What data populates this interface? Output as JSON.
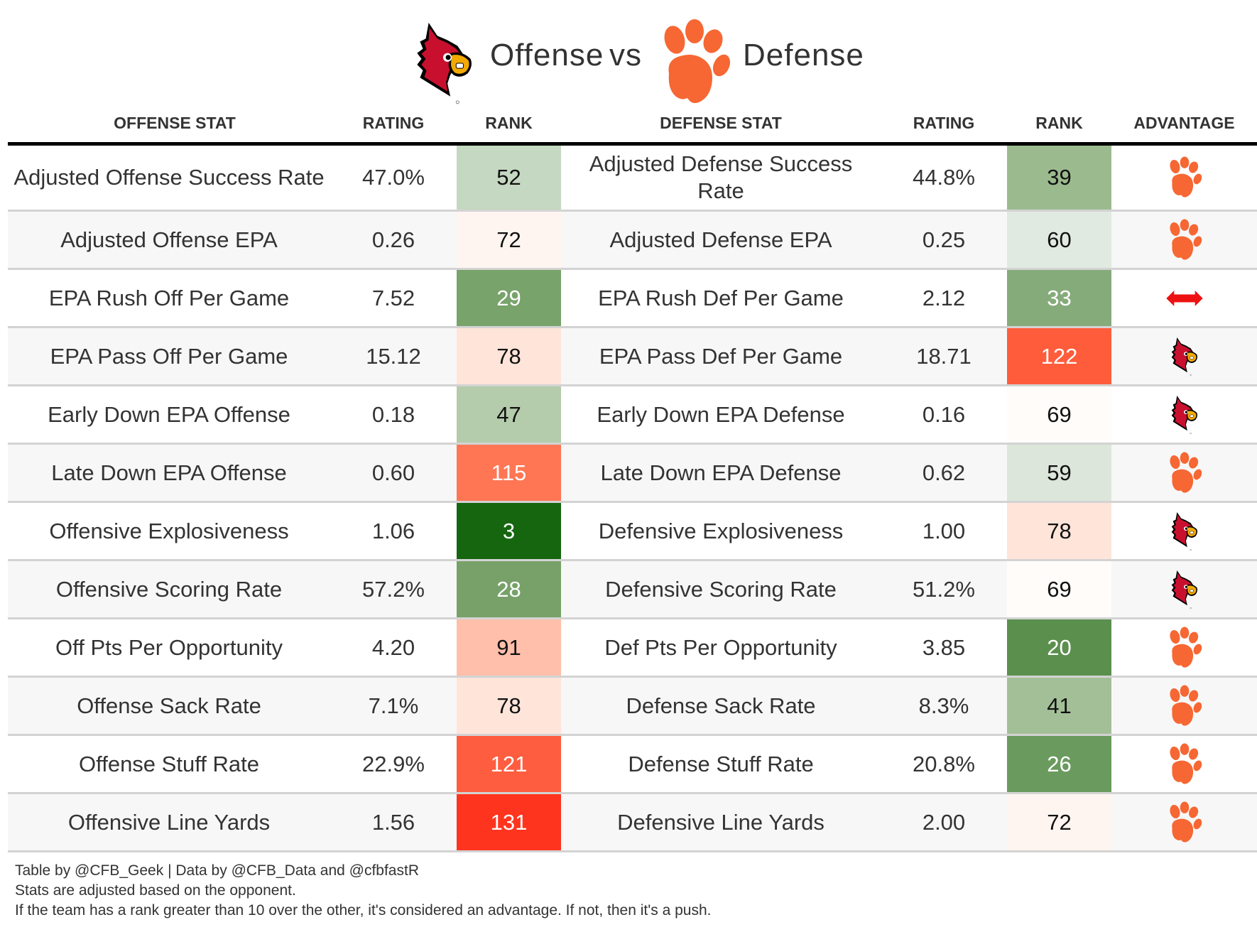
{
  "title": {
    "offense_team_icon": "louisville-cardinal-logo",
    "offense_label": "Offense",
    "vs_label": "vs",
    "defense_team_icon": "clemson-paw-logo",
    "defense_label": "Defense"
  },
  "columns": {
    "offense_stat": "OFFENSE STAT",
    "offense_rating": "RATING",
    "offense_rank": "RANK",
    "defense_stat": "DEFENSE STAT",
    "defense_rating": "RATING",
    "defense_rank": "RANK",
    "advantage": "ADVANTAGE"
  },
  "colors": {
    "cardinal_red": "#c8102e",
    "clemson_orange": "#f66733",
    "push_arrow": "#ee1111",
    "rule": "#000000",
    "row_alt": "#f7f7f7",
    "row_border": "#d3d3d3"
  },
  "rows": [
    {
      "offense_stat": "Adjusted Offense Success Rate",
      "offense_rating": "47.0%",
      "offense_rank": "52",
      "offense_rank_color": "#c5d8c1",
      "offense_rank_text": "#111111",
      "defense_stat": "Adjusted Defense Success Rate",
      "defense_rating": "44.8%",
      "defense_rank": "39",
      "defense_rank_color": "#9bbb8f",
      "defense_rank_text": "#111111",
      "advantage": "defense"
    },
    {
      "offense_stat": "Adjusted Offense EPA",
      "offense_rating": "0.26",
      "offense_rank": "72",
      "offense_rank_color": "#fff5f0",
      "offense_rank_text": "#111111",
      "defense_stat": "Adjusted Defense EPA",
      "defense_rating": "0.25",
      "defense_rank": "60",
      "defense_rank_color": "#e1eae0",
      "defense_rank_text": "#111111",
      "advantage": "defense"
    },
    {
      "offense_stat": "EPA Rush Off Per Game",
      "offense_rating": "7.52",
      "offense_rank": "29",
      "offense_rank_color": "#78a36b",
      "offense_rank_text": "#ffffff",
      "defense_stat": "EPA Rush Def Per Game",
      "defense_rating": "2.12",
      "defense_rank": "33",
      "defense_rank_color": "#86ab7a",
      "defense_rank_text": "#ffffff",
      "advantage": "push"
    },
    {
      "offense_stat": "EPA Pass Off Per Game",
      "offense_rating": "15.12",
      "offense_rank": "78",
      "offense_rank_color": "#fee4d9",
      "offense_rank_text": "#111111",
      "defense_stat": "EPA Pass Def Per Game",
      "defense_rating": "18.71",
      "defense_rank": "122",
      "defense_rank_color": "#ff5c3c",
      "defense_rank_text": "#ffffff",
      "advantage": "offense"
    },
    {
      "offense_stat": "Early Down EPA Offense",
      "offense_rating": "0.18",
      "offense_rank": "47",
      "offense_rank_color": "#b4ccab",
      "offense_rank_text": "#111111",
      "defense_stat": "Early Down EPA Defense",
      "defense_rating": "0.16",
      "defense_rank": "69",
      "defense_rank_color": "#fffcfa",
      "defense_rank_text": "#111111",
      "advantage": "offense"
    },
    {
      "offense_stat": "Late Down EPA Offense",
      "offense_rating": "0.60",
      "offense_rank": "115",
      "offense_rank_color": "#ff7654",
      "offense_rank_text": "#ffffff",
      "defense_stat": "Late Down EPA Defense",
      "defense_rating": "0.62",
      "defense_rank": "59",
      "defense_rank_color": "#dce6da",
      "defense_rank_text": "#111111",
      "advantage": "defense"
    },
    {
      "offense_stat": "Offensive Explosiveness",
      "offense_rating": "1.06",
      "offense_rank": "3",
      "offense_rank_color": "#15660f",
      "offense_rank_text": "#ffffff",
      "defense_stat": "Defensive Explosiveness",
      "defense_rating": "1.00",
      "defense_rank": "78",
      "defense_rank_color": "#fee4d9",
      "defense_rank_text": "#111111",
      "advantage": "offense"
    },
    {
      "offense_stat": "Offensive Scoring Rate",
      "offense_rating": "57.2%",
      "offense_rank": "28",
      "offense_rank_color": "#77a169",
      "offense_rank_text": "#ffffff",
      "defense_stat": "Defensive Scoring Rate",
      "defense_rating": "51.2%",
      "defense_rank": "69",
      "defense_rank_color": "#fffcfa",
      "defense_rank_text": "#111111",
      "advantage": "offense"
    },
    {
      "offense_stat": "Off Pts Per Opportunity",
      "offense_rating": "4.20",
      "offense_rank": "91",
      "offense_rank_color": "#ffbfaa",
      "offense_rank_text": "#111111",
      "defense_stat": "Def Pts Per Opportunity",
      "defense_rating": "3.85",
      "defense_rank": "20",
      "defense_rank_color": "#5b8f4e",
      "defense_rank_text": "#ffffff",
      "advantage": "defense"
    },
    {
      "offense_stat": "Offense Sack Rate",
      "offense_rating": "7.1%",
      "offense_rank": "78",
      "offense_rank_color": "#fee4d9",
      "offense_rank_text": "#111111",
      "defense_stat": "Defense Sack Rate",
      "defense_rating": "8.3%",
      "defense_rank": "41",
      "defense_rank_color": "#a3bf97",
      "defense_rank_text": "#111111",
      "advantage": "defense"
    },
    {
      "offense_stat": "Offense Stuff Rate",
      "offense_rating": "22.9%",
      "offense_rank": "121",
      "offense_rank_color": "#ff5d3f",
      "offense_rank_text": "#ffffff",
      "defense_stat": "Defense Stuff Rate",
      "defense_rating": "20.8%",
      "defense_rank": "26",
      "defense_rank_color": "#6b9a5e",
      "defense_rank_text": "#ffffff",
      "advantage": "defense"
    },
    {
      "offense_stat": "Offensive Line Yards",
      "offense_rating": "1.56",
      "offense_rank": "131",
      "offense_rank_color": "#ff341e",
      "offense_rank_text": "#ffffff",
      "defense_stat": "Defensive Line Yards",
      "defense_rating": "2.00",
      "defense_rank": "72",
      "defense_rank_color": "#fff5f0",
      "defense_rank_text": "#111111",
      "advantage": "defense"
    }
  ],
  "footer": {
    "line1": "Table by @CFB_Geek | Data by @CFB_Data and @cfbfastR",
    "line2": "Stats are adjusted based on the opponent.",
    "line3": "If the team has a rank greater than 10 over the other, it's considered an advantage. If not, then it's a push."
  }
}
